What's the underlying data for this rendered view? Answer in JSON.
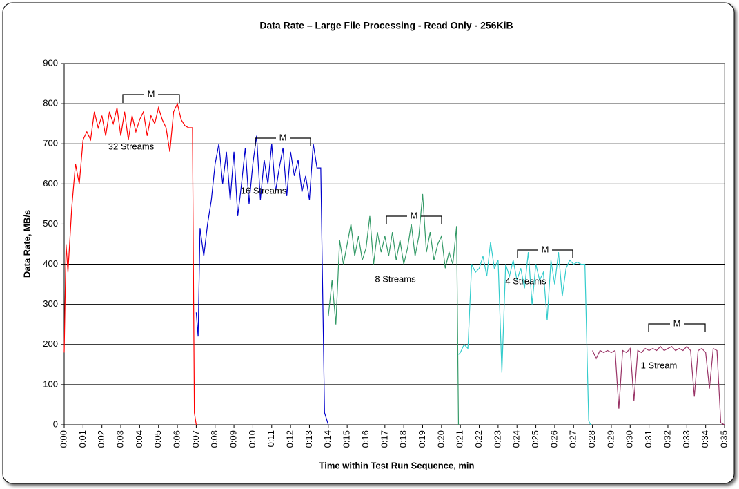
{
  "chart_data": {
    "type": "line",
    "title": "Data Rate – Large File Processing - Read Only - 256KiB",
    "x_label": "Time within Test Run Sequence, min",
    "y_label": "Data Rate, MB/s",
    "xlim": [
      0,
      35
    ],
    "ylim": [
      0,
      900
    ],
    "grid": true,
    "yticks": [
      0,
      100,
      200,
      300,
      400,
      500,
      600,
      700,
      800,
      900
    ],
    "xticks": [
      {
        "value": 0,
        "label": "0:00"
      },
      {
        "value": 1,
        "label": "0:01"
      },
      {
        "value": 2,
        "label": "0:02"
      },
      {
        "value": 3,
        "label": "0:03"
      },
      {
        "value": 4,
        "label": "0:04"
      },
      {
        "value": 5,
        "label": "0:05"
      },
      {
        "value": 6,
        "label": "0:06"
      },
      {
        "value": 7,
        "label": "0:07"
      },
      {
        "value": 8,
        "label": "0:08"
      },
      {
        "value": 9,
        "label": "0:09"
      },
      {
        "value": 10,
        "label": "0:10"
      },
      {
        "value": 11,
        "label": "0:11"
      },
      {
        "value": 12,
        "label": "0:12"
      },
      {
        "value": 13,
        "label": "0:13"
      },
      {
        "value": 14,
        "label": "0:14"
      },
      {
        "value": 15,
        "label": "0:15"
      },
      {
        "value": 16,
        "label": "0:16"
      },
      {
        "value": 17,
        "label": "0:17"
      },
      {
        "value": 18,
        "label": "0:18"
      },
      {
        "value": 19,
        "label": "0:19"
      },
      {
        "value": 20,
        "label": "0:20"
      },
      {
        "value": 21,
        "label": "0:21"
      },
      {
        "value": 22,
        "label": "0:22"
      },
      {
        "value": 23,
        "label": "0:23"
      },
      {
        "value": 24,
        "label": "0:24"
      },
      {
        "value": 25,
        "label": "0:25"
      },
      {
        "value": 26,
        "label": "0:26"
      },
      {
        "value": 27,
        "label": "0:27"
      },
      {
        "value": 28,
        "label": "0:28"
      },
      {
        "value": 29,
        "label": "0:29"
      },
      {
        "value": 30,
        "label": "0:30"
      },
      {
        "value": 31,
        "label": "0:31"
      },
      {
        "value": 32,
        "label": "0:32"
      },
      {
        "value": 33,
        "label": "0:33"
      },
      {
        "value": 34,
        "label": "0:34"
      },
      {
        "value": 35,
        "label": "0:35"
      }
    ],
    "annotations": [
      "M",
      "M",
      "M",
      "M",
      "M"
    ],
    "series": [
      {
        "name": "32 Streams",
        "color": "#ff0000",
        "x": [
          0,
          0.1,
          0.2,
          0.4,
          0.6,
          0.8,
          1.0,
          1.2,
          1.4,
          1.6,
          1.8,
          2.0,
          2.2,
          2.4,
          2.6,
          2.8,
          3.0,
          3.2,
          3.4,
          3.6,
          3.8,
          4.0,
          4.2,
          4.4,
          4.6,
          4.8,
          5.0,
          5.2,
          5.4,
          5.6,
          5.8,
          6.0,
          6.2,
          6.4,
          6.6,
          6.8,
          6.9,
          7.0
        ],
        "values": [
          180,
          450,
          380,
          540,
          650,
          600,
          710,
          730,
          710,
          780,
          740,
          770,
          720,
          780,
          750,
          790,
          720,
          780,
          710,
          770,
          730,
          760,
          780,
          720,
          770,
          750,
          790,
          760,
          740,
          680,
          780,
          800,
          760,
          745,
          740,
          740,
          30,
          0
        ]
      },
      {
        "name": "16 Streams",
        "color": "#0000cc",
        "x": [
          7.0,
          7.1,
          7.2,
          7.4,
          7.6,
          7.8,
          8.0,
          8.2,
          8.4,
          8.6,
          8.8,
          9.0,
          9.2,
          9.4,
          9.6,
          9.8,
          10.0,
          10.2,
          10.4,
          10.6,
          10.8,
          11.0,
          11.2,
          11.4,
          11.6,
          11.8,
          12.0,
          12.2,
          12.4,
          12.6,
          12.8,
          13.0,
          13.2,
          13.4,
          13.6,
          13.8,
          14.0
        ],
        "values": [
          280,
          220,
          490,
          420,
          500,
          560,
          650,
          700,
          600,
          680,
          560,
          680,
          520,
          600,
          690,
          550,
          650,
          720,
          560,
          660,
          600,
          700,
          580,
          640,
          690,
          570,
          680,
          620,
          660,
          580,
          620,
          560,
          700,
          640,
          640,
          30,
          0
        ]
      },
      {
        "name": "8 Streams",
        "color": "#339966",
        "x": [
          14.0,
          14.2,
          14.4,
          14.6,
          14.8,
          15.0,
          15.2,
          15.4,
          15.6,
          15.8,
          16.0,
          16.2,
          16.4,
          16.6,
          16.8,
          17.0,
          17.2,
          17.4,
          17.6,
          17.8,
          18.0,
          18.2,
          18.4,
          18.6,
          18.8,
          19.0,
          19.2,
          19.4,
          19.6,
          19.8,
          20.0,
          20.2,
          20.4,
          20.6,
          20.8,
          20.9
        ],
        "values": [
          270,
          360,
          250,
          460,
          400,
          450,
          500,
          420,
          470,
          410,
          440,
          520,
          400,
          480,
          430,
          470,
          420,
          480,
          410,
          460,
          400,
          440,
          500,
          420,
          470,
          575,
          430,
          480,
          410,
          450,
          470,
          390,
          430,
          400,
          495,
          0
        ]
      },
      {
        "name": "4 Streams",
        "color": "#33cccc",
        "x": [
          20.9,
          21.0,
          21.2,
          21.4,
          21.6,
          21.8,
          22.0,
          22.2,
          22.4,
          22.6,
          22.8,
          23.0,
          23.2,
          23.4,
          23.6,
          23.8,
          24.0,
          24.2,
          24.4,
          24.6,
          24.8,
          25.0,
          25.2,
          25.4,
          25.6,
          25.8,
          26.0,
          26.2,
          26.4,
          26.6,
          26.8,
          27.0,
          27.2,
          27.4,
          27.6,
          27.8,
          27.9
        ],
        "values": [
          175,
          180,
          200,
          190,
          400,
          380,
          390,
          420,
          370,
          455,
          390,
          410,
          130,
          400,
          370,
          410,
          360,
          390,
          340,
          430,
          300,
          400,
          360,
          380,
          260,
          410,
          350,
          430,
          320,
          390,
          410,
          400,
          405,
          400,
          400,
          10,
          0
        ]
      },
      {
        "name": "1 Stream",
        "color": "#993366",
        "x": [
          28.0,
          28.2,
          28.4,
          28.6,
          28.8,
          29.0,
          29.2,
          29.4,
          29.6,
          29.8,
          30.0,
          30.2,
          30.4,
          30.6,
          30.8,
          31.0,
          31.2,
          31.4,
          31.6,
          31.8,
          32.0,
          32.2,
          32.4,
          32.6,
          32.8,
          33.0,
          33.2,
          33.4,
          33.6,
          33.8,
          34.0,
          34.2,
          34.4,
          34.6,
          34.8,
          35.0
        ],
        "values": [
          185,
          165,
          185,
          180,
          185,
          180,
          185,
          40,
          185,
          180,
          190,
          60,
          185,
          180,
          190,
          185,
          190,
          185,
          195,
          185,
          190,
          195,
          185,
          190,
          185,
          195,
          185,
          70,
          185,
          190,
          180,
          90,
          190,
          185,
          5,
          0
        ]
      }
    ]
  }
}
